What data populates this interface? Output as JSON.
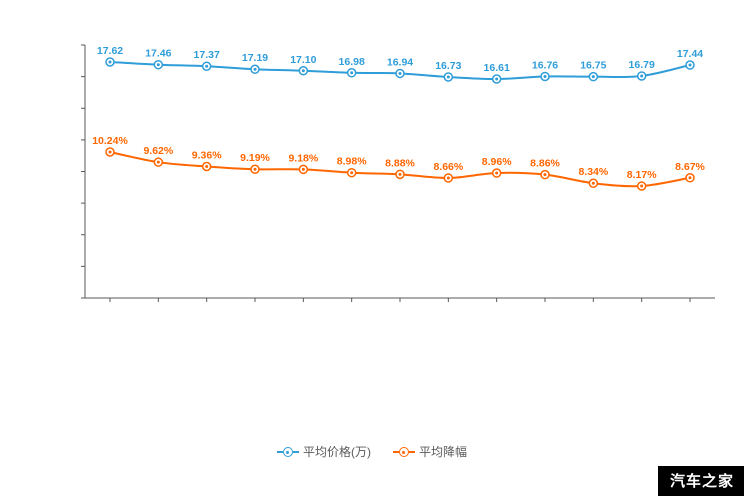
{
  "chart_data": {
    "type": "line",
    "title": "",
    "xlabel": "",
    "ylabel": "",
    "x_tick_labels_visible": false,
    "grid": false,
    "legend_position": "bottom",
    "axis_color": "#595959",
    "series": [
      {
        "name": "平均价格(万)",
        "color": "#2f9dd8",
        "values": [
          17.62,
          17.46,
          17.37,
          17.19,
          17.1,
          16.98,
          16.94,
          16.73,
          16.61,
          16.76,
          16.75,
          16.79,
          17.44
        ],
        "labels": [
          "17.62",
          "17.46",
          "17.37",
          "17.19",
          "17.10",
          "16.98",
          "16.94",
          "16.73",
          "16.61",
          "16.76",
          "16.75",
          "16.79",
          "17.44"
        ]
      },
      {
        "name": "平均降幅",
        "color": "#ff6600",
        "values": [
          10.24,
          9.62,
          9.36,
          9.19,
          9.18,
          8.98,
          8.88,
          8.66,
          8.96,
          8.86,
          8.34,
          8.17,
          8.67
        ],
        "labels": [
          "10.24%",
          "9.62%",
          "9.36%",
          "9.19%",
          "9.18%",
          "8.98%",
          "8.88%",
          "8.66%",
          "8.96%",
          "8.86%",
          "8.34%",
          "8.17%",
          "8.67%"
        ]
      }
    ]
  },
  "legend": {
    "items": [
      {
        "label": "平均价格(万)",
        "color": "#2f9dd8"
      },
      {
        "label": "平均降幅",
        "color": "#ff6600"
      }
    ]
  },
  "watermark": "汽车之家"
}
